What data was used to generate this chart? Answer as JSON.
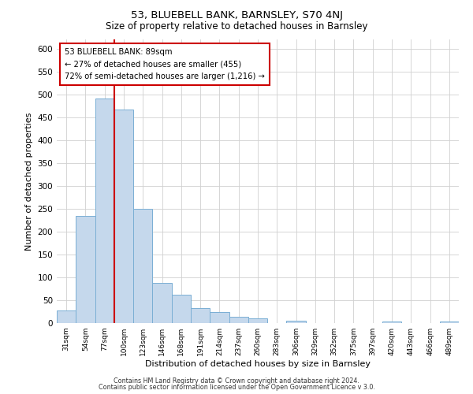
{
  "title_line1": "53, BLUEBELL BANK, BARNSLEY, S70 4NJ",
  "title_line2": "Size of property relative to detached houses in Barnsley",
  "xlabel": "Distribution of detached houses by size in Barnsley",
  "ylabel": "Number of detached properties",
  "bar_labels": [
    "31sqm",
    "54sqm",
    "77sqm",
    "100sqm",
    "123sqm",
    "146sqm",
    "168sqm",
    "191sqm",
    "214sqm",
    "237sqm",
    "260sqm",
    "283sqm",
    "306sqm",
    "329sqm",
    "352sqm",
    "375sqm",
    "397sqm",
    "420sqm",
    "443sqm",
    "466sqm",
    "489sqm"
  ],
  "bar_values": [
    27,
    234,
    490,
    467,
    249,
    88,
    62,
    33,
    24,
    14,
    11,
    0,
    5,
    0,
    0,
    0,
    0,
    3,
    0,
    0,
    4
  ],
  "bar_color": "#c5d8ec",
  "bar_edge_color": "#7aafd4",
  "marker_line_color": "#cc0000",
  "annotation_text": "53 BLUEBELL BANK: 89sqm\n← 27% of detached houses are smaller (455)\n72% of semi-detached houses are larger (1,216) →",
  "annotation_box_facecolor": "#ffffff",
  "annotation_box_edgecolor": "#cc0000",
  "ylim": [
    0,
    620
  ],
  "yticks": [
    0,
    50,
    100,
    150,
    200,
    250,
    300,
    350,
    400,
    450,
    500,
    550,
    600
  ],
  "footer_line1": "Contains HM Land Registry data © Crown copyright and database right 2024.",
  "footer_line2": "Contains public sector information licensed under the Open Government Licence v 3.0.",
  "background_color": "#ffffff",
  "grid_color": "#d0d0d0"
}
